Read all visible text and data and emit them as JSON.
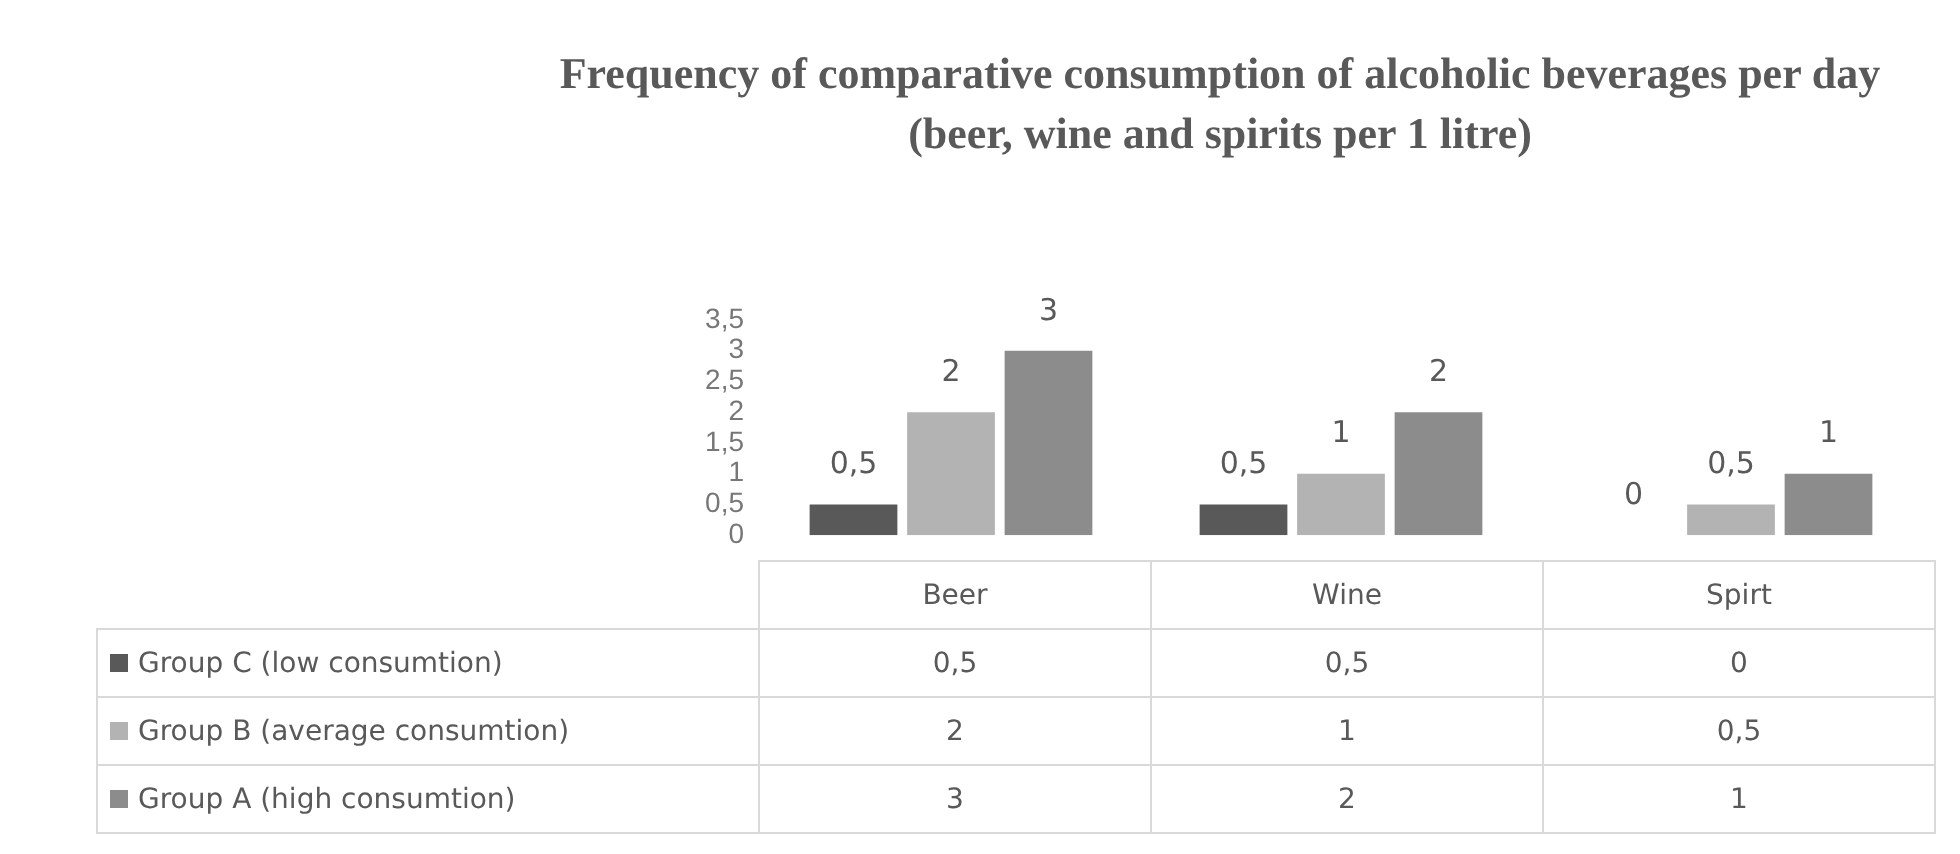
{
  "chart_data": {
    "type": "bar",
    "title": "Frequency of comparative consumption of alcoholic beverages per day (beer, wine and spirits per 1 litre)",
    "categories": [
      "Beer",
      "Wine",
      "Spirt"
    ],
    "series": [
      {
        "name": "Group C (low consumtion)",
        "color": "#595959",
        "values": [
          0.5,
          0.5,
          0
        ],
        "value_labels": [
          "0,5",
          "0,5",
          "0"
        ]
      },
      {
        "name": "Group B (average consumtion)",
        "color": "#b3b3b3",
        "values": [
          2,
          1,
          0.5
        ],
        "value_labels": [
          "2",
          "1",
          "0,5"
        ]
      },
      {
        "name": "Group A (high consumtion)",
        "color": "#8c8c8c",
        "values": [
          3,
          2,
          1
        ],
        "value_labels": [
          "3",
          "2",
          "1"
        ]
      }
    ],
    "ylim": [
      0,
      3.5
    ],
    "yticks": [
      {
        "value": 0,
        "label": "0"
      },
      {
        "value": 0.5,
        "label": "0,5"
      },
      {
        "value": 1,
        "label": "1"
      },
      {
        "value": 1.5,
        "label": "1,5"
      },
      {
        "value": 2,
        "label": "2"
      },
      {
        "value": 2.5,
        "label": "2,5"
      },
      {
        "value": 3,
        "label": "3"
      },
      {
        "value": 3.5,
        "label": "3,5"
      }
    ],
    "grid": false,
    "legend": "bottom"
  }
}
